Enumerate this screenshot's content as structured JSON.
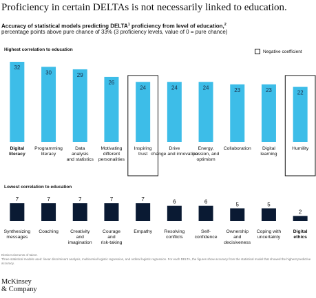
{
  "title": "Proficiency in certain DELTAs is not necessarily linked to education.",
  "subtitle_main": "Accuracy of statistical models predicting DELTA",
  "subtitle_sup1": "1",
  "subtitle_rest": " proficiency from level of education,",
  "subtitle_sup2": "2",
  "note": "percentage points above pure chance of 33% (3 proficiency levels, value of 0 = pure chance)",
  "legend_label": "Negative coefficient",
  "colors": {
    "top_bar": "#3dbde8",
    "bottom_bar": "#0a1a33",
    "label_on_bar": "#1b2b45"
  },
  "footnotes": [
    "Distinct elements of talent.",
    "Three statistical models used: linear discriminant analysis, multinomial logistic regression, and ordinal logistic regression. For each DELTA, the figures show accuracy from the statistical model that showed the highest predictive accuracy."
  ],
  "logo_line1": "McKinsey",
  "logo_line2": "& Company",
  "chart_data": [
    {
      "type": "bar",
      "title": "Highest correlation to education",
      "ylim": [
        0,
        32
      ],
      "bars": [
        {
          "label": [
            "Digital",
            "literacy"
          ],
          "value": 32,
          "bold": true,
          "negative": false
        },
        {
          "label": [
            "Programming",
            "literacy"
          ],
          "value": 30,
          "bold": false,
          "negative": false
        },
        {
          "label": [
            "Data",
            "analysis",
            "and statistics"
          ],
          "value": 29,
          "bold": false,
          "negative": false
        },
        {
          "label": [
            "Motivating",
            "different",
            "personalities"
          ],
          "value": 26,
          "bold": false,
          "negative": false
        },
        {
          "label": [
            "Inspiring",
            "trust"
          ],
          "value": 24,
          "bold": false,
          "negative": true
        },
        {
          "label": [
            "Drive",
            "change and innovation"
          ],
          "value": 24,
          "bold": false,
          "negative": false
        },
        {
          "label": [
            "Energy,",
            "passion, and",
            "optimism"
          ],
          "value": 24,
          "bold": false,
          "negative": false
        },
        {
          "label": [
            "Collaboration"
          ],
          "value": 23,
          "bold": false,
          "negative": false
        },
        {
          "label": [
            "Digital",
            "learning"
          ],
          "value": 23,
          "bold": false,
          "negative": false
        },
        {
          "label": [
            "Humility"
          ],
          "value": 22,
          "bold": false,
          "negative": true
        }
      ]
    },
    {
      "type": "bar",
      "title": "Lowest correlation to education",
      "ylim": [
        0,
        7
      ],
      "bars": [
        {
          "label": [
            "Synthesizing",
            "messages"
          ],
          "value": 7,
          "bold": false
        },
        {
          "label": [
            "Coaching"
          ],
          "value": 7,
          "bold": false
        },
        {
          "label": [
            "Creativity",
            "and",
            "imagination"
          ],
          "value": 7,
          "bold": false
        },
        {
          "label": [
            "Courage",
            "and",
            "risk-taking"
          ],
          "value": 7,
          "bold": false
        },
        {
          "label": [
            "Empathy"
          ],
          "value": 7,
          "bold": false
        },
        {
          "label": [
            "Resolving",
            "conflicts"
          ],
          "value": 6,
          "bold": false
        },
        {
          "label": [
            "Self-",
            "confidence"
          ],
          "value": 6,
          "bold": false
        },
        {
          "label": [
            "Ownership",
            "and",
            "decisiveness"
          ],
          "value": 5,
          "bold": false
        },
        {
          "label": [
            "Coping with",
            "uncertainty"
          ],
          "value": 5,
          "bold": false
        },
        {
          "label": [
            "Digital",
            "ethics"
          ],
          "value": 2,
          "bold": true
        }
      ]
    }
  ]
}
